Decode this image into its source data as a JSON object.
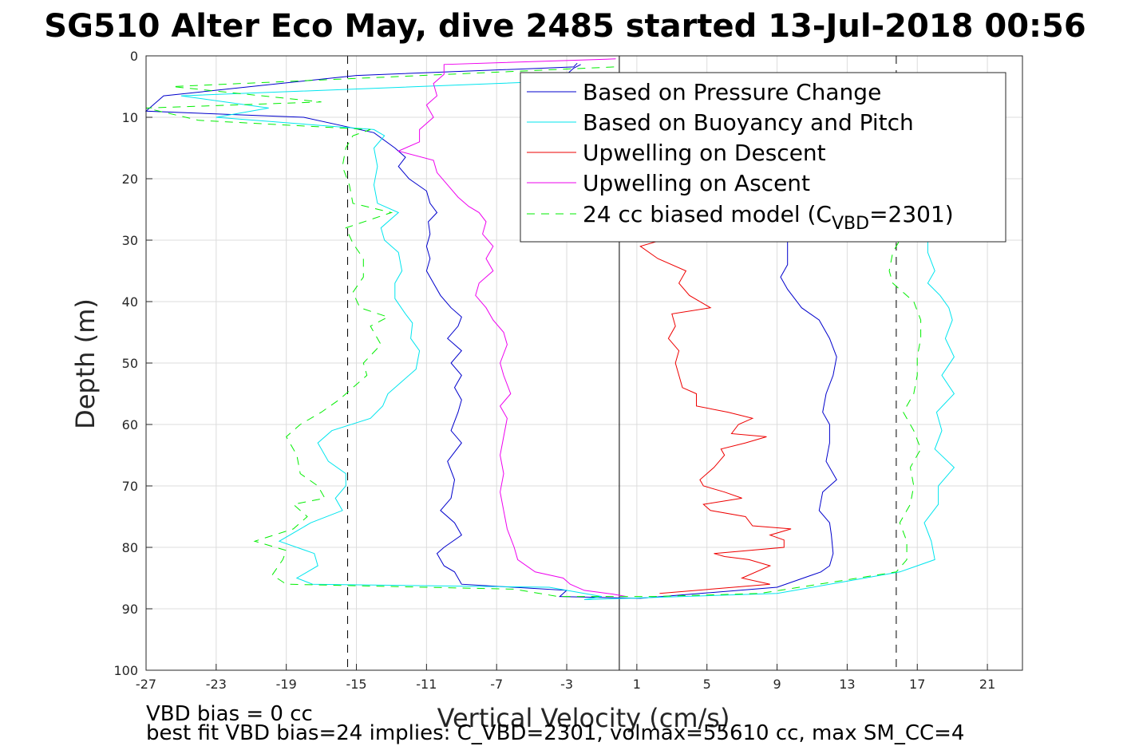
{
  "chart_data": {
    "type": "line",
    "title": "SG510 Alter Eco May, dive 2485 started 13-Jul-2018 00:56",
    "xlabel": "Vertical Velocity (cm/s)",
    "ylabel": "Depth (m)",
    "xlim": [
      -27,
      23
    ],
    "ylim": [
      0,
      100
    ],
    "y_reversed": true,
    "grid": true,
    "xticks": [
      -27,
      -23,
      -19,
      -15,
      -11,
      -7,
      -3,
      1,
      5,
      9,
      13,
      17,
      21
    ],
    "yticks": [
      0,
      10,
      20,
      30,
      40,
      50,
      60,
      70,
      80,
      90,
      100
    ],
    "legend_position": "top-right",
    "series": [
      {
        "name": "Based on Pressure Change",
        "color": "#0000cc",
        "style": "solid",
        "points": [
          [
            -2.4,
            1.2
          ],
          [
            -2.6,
            1.8
          ],
          [
            -15,
            3.2
          ],
          [
            -26,
            6.5
          ],
          [
            -27,
            9
          ],
          [
            -18,
            10
          ],
          [
            -14,
            12.5
          ],
          [
            -12.8,
            15
          ],
          [
            -12.2,
            16.5
          ],
          [
            -12.6,
            18
          ],
          [
            -12,
            20
          ],
          [
            -11,
            22
          ],
          [
            -10.8,
            24
          ],
          [
            -10.4,
            25.5
          ],
          [
            -10.9,
            27
          ],
          [
            -10.8,
            29
          ],
          [
            -11,
            31
          ],
          [
            -10.8,
            33
          ],
          [
            -11,
            35
          ],
          [
            -10.6,
            37
          ],
          [
            -10.2,
            39
          ],
          [
            -9.6,
            41
          ],
          [
            -9.0,
            42.5
          ],
          [
            -9.2,
            44
          ],
          [
            -9.8,
            46
          ],
          [
            -9.0,
            48
          ],
          [
            -9.6,
            50
          ],
          [
            -9.0,
            52
          ],
          [
            -9.4,
            54
          ],
          [
            -9.0,
            56
          ],
          [
            -9.2,
            58
          ],
          [
            -9.6,
            61
          ],
          [
            -9.0,
            63
          ],
          [
            -9.8,
            66
          ],
          [
            -9.4,
            69
          ],
          [
            -9.6,
            72
          ],
          [
            -10.2,
            74
          ],
          [
            -9.4,
            76
          ],
          [
            -9.0,
            78
          ],
          [
            -10.0,
            80
          ],
          [
            -10.4,
            81
          ],
          [
            -10.0,
            83
          ],
          [
            -9.4,
            84
          ],
          [
            -9.0,
            86
          ],
          [
            -3.0,
            87
          ],
          [
            -3.4,
            88
          ],
          [
            1.2,
            88.3
          ],
          [
            4.6,
            87.5
          ],
          [
            9.0,
            86.5
          ],
          [
            11.5,
            84
          ],
          [
            12.0,
            83
          ],
          [
            12.2,
            81
          ],
          [
            12.1,
            78
          ],
          [
            12.0,
            76
          ],
          [
            11.4,
            74
          ],
          [
            11.6,
            71
          ],
          [
            12.4,
            69
          ],
          [
            11.8,
            66
          ],
          [
            12.0,
            63
          ],
          [
            12.0,
            60
          ],
          [
            11.6,
            58
          ],
          [
            11.8,
            55
          ],
          [
            12.2,
            52
          ],
          [
            12.4,
            49
          ],
          [
            12.0,
            46
          ],
          [
            11.4,
            43
          ],
          [
            10.4,
            41
          ],
          [
            9.6,
            38
          ],
          [
            9.2,
            36
          ],
          [
            9.6,
            34
          ],
          [
            9.6,
            31
          ],
          [
            9.6,
            29
          ]
        ]
      },
      {
        "name": "Based on Buoyancy and Pitch",
        "color": "#00e5ee",
        "style": "solid",
        "points": [
          [
            -2.5,
            4
          ],
          [
            -25,
            6.5
          ],
          [
            -20,
            8.5
          ],
          [
            -23,
            10
          ],
          [
            -14,
            12
          ],
          [
            -13.4,
            13
          ],
          [
            -14,
            15
          ],
          [
            -13.8,
            18
          ],
          [
            -14,
            21
          ],
          [
            -13.8,
            24
          ],
          [
            -12.6,
            25.5
          ],
          [
            -13.6,
            28
          ],
          [
            -13.4,
            30
          ],
          [
            -12.6,
            32
          ],
          [
            -12.4,
            35
          ],
          [
            -12.8,
            37
          ],
          [
            -12.8,
            39.5
          ],
          [
            -12.2,
            42
          ],
          [
            -11.8,
            43.5
          ],
          [
            -11.9,
            46
          ],
          [
            -11.4,
            48
          ],
          [
            -11.6,
            51
          ],
          [
            -12.4,
            53
          ],
          [
            -13.2,
            55
          ],
          [
            -13.5,
            57
          ],
          [
            -14.2,
            59
          ],
          [
            -16.4,
            61
          ],
          [
            -17.2,
            63
          ],
          [
            -16.6,
            66
          ],
          [
            -15.6,
            68
          ],
          [
            -15.6,
            70
          ],
          [
            -16.2,
            72
          ],
          [
            -15.8,
            74
          ],
          [
            -17.6,
            76
          ],
          [
            -19.4,
            79
          ],
          [
            -17.4,
            81
          ],
          [
            -17.2,
            83
          ],
          [
            -18.4,
            85
          ],
          [
            -17.5,
            86
          ],
          [
            -4,
            86.5
          ],
          [
            -1,
            88
          ],
          [
            -2,
            88.5
          ],
          [
            1.5,
            88.2
          ],
          [
            9,
            87.5
          ],
          [
            12,
            86
          ],
          [
            16,
            84
          ],
          [
            18,
            82
          ],
          [
            17.8,
            79
          ],
          [
            17.4,
            76
          ],
          [
            18.2,
            73
          ],
          [
            18.2,
            70
          ],
          [
            19.1,
            67
          ],
          [
            18.0,
            64
          ],
          [
            18.4,
            61
          ],
          [
            18.1,
            58
          ],
          [
            19.1,
            55
          ],
          [
            18.4,
            52
          ],
          [
            19.1,
            49
          ],
          [
            18.6,
            46
          ],
          [
            19.0,
            43
          ],
          [
            18.8,
            41
          ],
          [
            18.3,
            39
          ],
          [
            17.6,
            37
          ],
          [
            18.0,
            35
          ],
          [
            17.6,
            32
          ],
          [
            17.6,
            30
          ],
          [
            18.5,
            28
          ]
        ]
      },
      {
        "name": "Upwelling on Descent",
        "color": "#ee0000",
        "style": "solid",
        "points": [
          [
            2.3,
            87.5
          ],
          [
            8.6,
            86
          ],
          [
            7.0,
            85
          ],
          [
            8.6,
            83
          ],
          [
            7.4,
            82
          ],
          [
            6.0,
            81.5
          ],
          [
            5.4,
            81
          ],
          [
            9.4,
            80
          ],
          [
            9.4,
            78.8
          ],
          [
            8.6,
            78
          ],
          [
            9.8,
            77
          ],
          [
            7.6,
            76.5
          ],
          [
            7.2,
            75
          ],
          [
            5.2,
            74
          ],
          [
            4.8,
            73
          ],
          [
            7.0,
            72
          ],
          [
            6.0,
            71
          ],
          [
            4.8,
            70
          ],
          [
            4.6,
            69
          ],
          [
            5.4,
            67
          ],
          [
            6.0,
            65
          ],
          [
            5.8,
            64
          ],
          [
            7.2,
            63
          ],
          [
            8.4,
            62
          ],
          [
            6.4,
            61.5
          ],
          [
            6.8,
            60
          ],
          [
            7.6,
            59
          ],
          [
            6.2,
            58
          ],
          [
            4.4,
            57
          ],
          [
            4.4,
            55
          ],
          [
            3.6,
            54
          ],
          [
            3.4,
            52
          ],
          [
            3.2,
            50
          ],
          [
            3.4,
            48
          ],
          [
            2.8,
            46
          ],
          [
            3.2,
            44
          ],
          [
            3.0,
            42
          ],
          [
            5.2,
            41
          ],
          [
            4.0,
            39
          ],
          [
            3.4,
            37
          ],
          [
            3.8,
            35
          ],
          [
            2.2,
            33
          ],
          [
            1.2,
            31
          ],
          [
            2.4,
            30
          ]
        ]
      },
      {
        "name": "Upwelling on Ascent",
        "color": "#ee00ee",
        "style": "solid",
        "points": [
          [
            -0.2,
            0.5
          ],
          [
            -10,
            1.4
          ],
          [
            -10,
            3.0
          ],
          [
            -10.6,
            4.5
          ],
          [
            -10.4,
            6.5
          ],
          [
            -11,
            8
          ],
          [
            -10.6,
            10
          ],
          [
            -11.4,
            12
          ],
          [
            -11.4,
            14
          ],
          [
            -12.6,
            15.5
          ],
          [
            -10.6,
            17
          ],
          [
            -10.4,
            19
          ],
          [
            -9.8,
            21
          ],
          [
            -9.2,
            23
          ],
          [
            -8.6,
            24.5
          ],
          [
            -8.0,
            25.5
          ],
          [
            -7.6,
            27
          ],
          [
            -7.8,
            29
          ],
          [
            -7.2,
            31
          ],
          [
            -7.6,
            33
          ],
          [
            -7.2,
            35
          ],
          [
            -8.0,
            37
          ],
          [
            -8.2,
            39
          ],
          [
            -7.6,
            41
          ],
          [
            -7.2,
            43
          ],
          [
            -6.6,
            45
          ],
          [
            -6.4,
            47
          ],
          [
            -6.8,
            50
          ],
          [
            -6.6,
            52
          ],
          [
            -6.2,
            55
          ],
          [
            -6.8,
            57
          ],
          [
            -6.4,
            59
          ],
          [
            -6.6,
            62
          ],
          [
            -6.8,
            65
          ],
          [
            -6.6,
            68
          ],
          [
            -6.8,
            71
          ],
          [
            -6.6,
            74
          ],
          [
            -6.4,
            77
          ],
          [
            -6.0,
            80
          ],
          [
            -5.8,
            82
          ],
          [
            -4.8,
            84
          ],
          [
            -3.2,
            85
          ],
          [
            -2.8,
            86
          ],
          [
            -2.0,
            87
          ],
          [
            -0.4,
            87.6
          ],
          [
            0.4,
            88
          ]
        ]
      },
      {
        "name": "24 cc biased model (C_VBD=2301)",
        "color": "#00ee00",
        "style": "dashed",
        "points": [
          [
            -0.3,
            1.8
          ],
          [
            -25.5,
            5
          ],
          [
            -17,
            7.5
          ],
          [
            -27,
            8.5
          ],
          [
            -24,
            10.5
          ],
          [
            -14.2,
            12
          ],
          [
            -15.2,
            13
          ],
          [
            -15.6,
            15
          ],
          [
            -15.8,
            18
          ],
          [
            -15.4,
            21
          ],
          [
            -15.2,
            24
          ],
          [
            -13.0,
            25.5
          ],
          [
            -15.6,
            28
          ],
          [
            -15.2,
            30.5
          ],
          [
            -14.6,
            33
          ],
          [
            -14.6,
            36
          ],
          [
            -15.2,
            38.5
          ],
          [
            -14.8,
            41
          ],
          [
            -13.2,
            42.5
          ],
          [
            -14.2,
            44
          ],
          [
            -13.6,
            47
          ],
          [
            -14.6,
            50
          ],
          [
            -14.4,
            52
          ],
          [
            -15.2,
            54
          ],
          [
            -16.0,
            56
          ],
          [
            -17.0,
            58
          ],
          [
            -18.2,
            60
          ],
          [
            -19.0,
            62
          ],
          [
            -18.4,
            65
          ],
          [
            -18.2,
            68
          ],
          [
            -17.2,
            70
          ],
          [
            -16.8,
            72
          ],
          [
            -18.6,
            73
          ],
          [
            -17.8,
            75
          ],
          [
            -18.6,
            77
          ],
          [
            -20.8,
            79
          ],
          [
            -19.0,
            80.5
          ],
          [
            -19.2,
            82
          ],
          [
            -19.8,
            84.5
          ],
          [
            -19.0,
            86
          ],
          [
            -6.0,
            86.8
          ],
          [
            -3.5,
            88.0
          ],
          [
            2.0,
            88.0
          ],
          [
            8.0,
            87.5
          ],
          [
            12.5,
            85.5
          ],
          [
            15.8,
            84
          ],
          [
            16.4,
            82
          ],
          [
            16.4,
            79
          ],
          [
            16.0,
            76
          ],
          [
            16.6,
            73
          ],
          [
            16.8,
            70
          ],
          [
            16.6,
            67
          ],
          [
            17.2,
            64
          ],
          [
            16.8,
            61
          ],
          [
            16.2,
            58
          ],
          [
            16.8,
            55
          ],
          [
            17.0,
            52
          ],
          [
            17.0,
            49
          ],
          [
            17.2,
            46
          ],
          [
            17.2,
            43
          ],
          [
            16.8,
            40
          ],
          [
            15.6,
            37
          ],
          [
            15.4,
            35
          ],
          [
            15.6,
            32
          ],
          [
            16.0,
            30
          ]
        ]
      },
      {
        "name": "",
        "color": "#0000cc",
        "style": "solid",
        "points": [
          [
            -2.2,
            1.4
          ],
          [
            -2.6,
            2
          ],
          [
            -3,
            3
          ],
          [
            -4,
            3.2
          ]
        ]
      }
    ],
    "reference_lines": [
      {
        "x": 0,
        "style": "solid",
        "color": "#000000"
      },
      {
        "x": -15.5,
        "style": "dashed",
        "color": "#000000"
      },
      {
        "x": 15.8,
        "style": "dashed",
        "color": "#000000"
      }
    ],
    "legend": [
      {
        "label": "Based on Pressure Change",
        "color": "#0000cc",
        "style": "solid"
      },
      {
        "label": "Based on Buoyancy and Pitch",
        "color": "#00e5ee",
        "style": "solid"
      },
      {
        "label": "Upwelling on Descent",
        "color": "#ee0000",
        "style": "solid"
      },
      {
        "label": "Upwelling on Ascent",
        "color": "#ee00ee",
        "style": "solid"
      },
      {
        "label_prefix": "24 cc biased model (C",
        "label_sub": "VBD",
        "label_suffix": "=2301)",
        "color": "#00ee00",
        "style": "dashed"
      }
    ]
  },
  "annotations": {
    "line1": "VBD bias = 0 cc",
    "line2": "best fit VBD bias=24 implies: C_VBD=2301, volmax=55610 cc, max SM_CC=4"
  }
}
